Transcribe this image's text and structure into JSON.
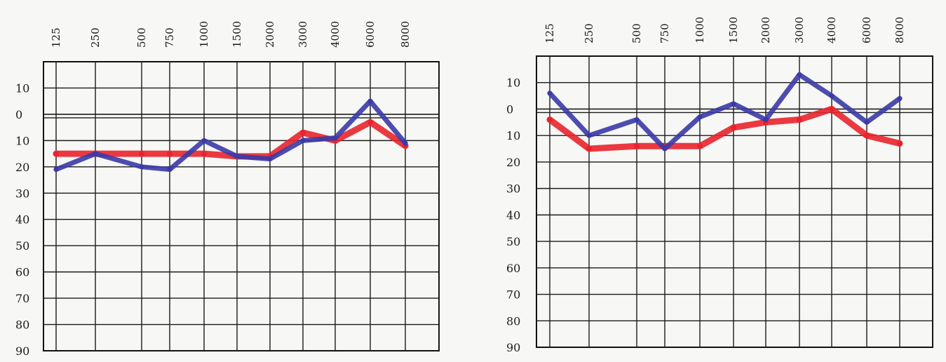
{
  "colors": {
    "series_0": "#e8232e",
    "series_1": "#3a3aa8",
    "grid": "#1a1a1a",
    "paper": "#f7f7f5"
  },
  "chart_data": [
    {
      "type": "line",
      "x": [
        "125",
        "250",
        "500",
        "750",
        "1000",
        "1500",
        "2000",
        "3000",
        "4000",
        "6000",
        "8000"
      ],
      "y_tick_labels": [
        "10",
        "0",
        "10",
        "20",
        "30",
        "40",
        "50",
        "60",
        "70",
        "80",
        "90"
      ],
      "y_tick_values": [
        -10,
        0,
        10,
        20,
        30,
        40,
        50,
        60,
        70,
        80,
        90
      ],
      "ylim": [
        -20,
        90
      ],
      "y_inverted": true,
      "grid": true,
      "series": [
        {
          "color": "#e8232e",
          "values": [
            15,
            15,
            15,
            15,
            15,
            16,
            16,
            7,
            10,
            3,
            12
          ]
        },
        {
          "color": "#3a3aa8",
          "values": [
            21,
            15,
            20,
            21,
            10,
            16,
            17,
            10,
            9,
            -5,
            11
          ]
        }
      ]
    },
    {
      "type": "line",
      "x": [
        "125",
        "250",
        "500",
        "750",
        "1000",
        "1500",
        "2000",
        "3000",
        "4000",
        "6000",
        "8000"
      ],
      "y_tick_labels": [
        "10",
        "0",
        "10",
        "20",
        "30",
        "40",
        "50",
        "60",
        "70",
        "80",
        "90"
      ],
      "y_tick_values": [
        -10,
        0,
        10,
        20,
        30,
        40,
        50,
        60,
        70,
        80,
        90
      ],
      "ylim": [
        -20,
        90
      ],
      "y_inverted": true,
      "grid": true,
      "series": [
        {
          "color": "#e8232e",
          "values": [
            4,
            15,
            14,
            14,
            14,
            7,
            5,
            4,
            0,
            10,
            13
          ]
        },
        {
          "color": "#3a3aa8",
          "values": [
            -6,
            10,
            4,
            15,
            3,
            -2,
            4,
            -13,
            -5,
            5,
            -4
          ]
        }
      ]
    }
  ]
}
